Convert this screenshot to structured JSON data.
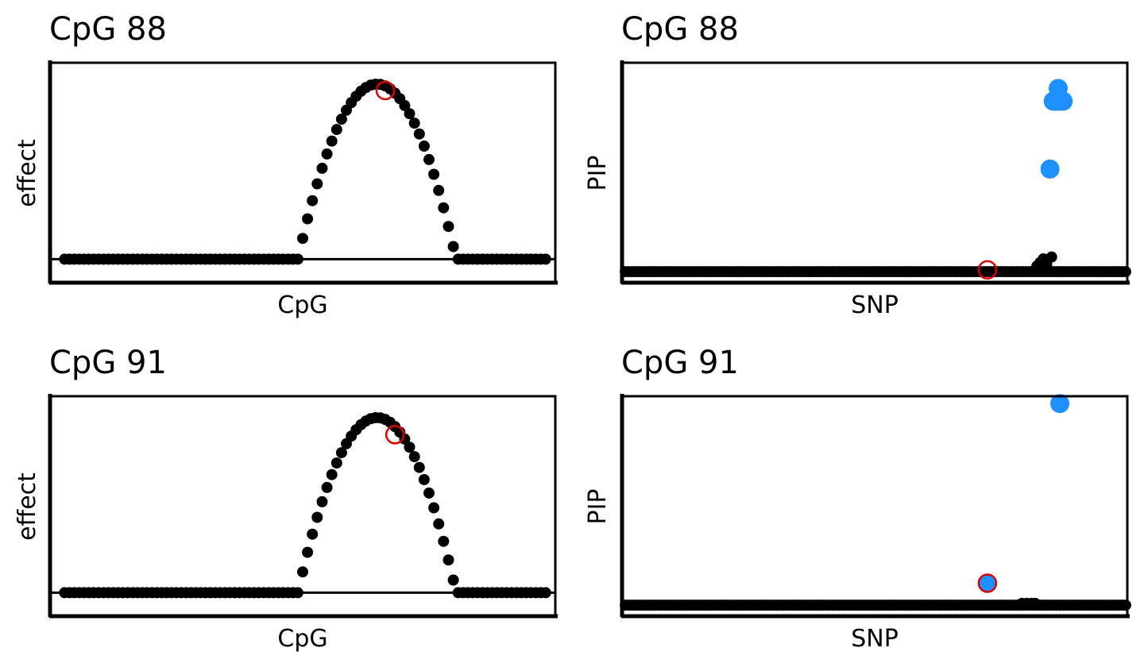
{
  "chart_data": [
    {
      "type": "scatter",
      "title": "CpG 88",
      "xlabel": "CpG",
      "ylabel": "effect",
      "xlim": [
        0,
        104
      ],
      "ylim": [
        -0.11,
        0.92
      ],
      "baseline": 0,
      "grid": false,
      "points": {
        "peak_start": 51,
        "peak_center": 67.3,
        "peak_end": 84,
        "peak_height": 0.82,
        "n": 100
      },
      "highlight": {
        "x": 69,
        "y": 0.79,
        "color": "#dd0000"
      }
    },
    {
      "type": "scatter",
      "title": "CpG 88",
      "xlabel": "SNP",
      "ylabel": "PIP",
      "xlim": [
        0,
        307
      ],
      "ylim": [
        -0.06,
        1.14
      ],
      "grid": false,
      "series_colors": {
        "low": "#000000",
        "high": "#1e90ff"
      },
      "high_points": [
        {
          "x": 265,
          "y": 1.0
        },
        {
          "x": 267,
          "y": 0.93
        },
        {
          "x": 268,
          "y": 0.93
        },
        {
          "x": 263,
          "y": 0.93
        },
        {
          "x": 262,
          "y": 0.93
        },
        {
          "x": 264,
          "y": 0.93
        },
        {
          "x": 266,
          "y": 0.93
        },
        {
          "x": 260,
          "y": 0.56
        }
      ],
      "highlight": {
        "x": 222,
        "y": 0.01,
        "color": "#dd0000"
      }
    },
    {
      "type": "scatter",
      "title": "CpG 91",
      "xlabel": "CpG",
      "ylabel": "effect",
      "xlim": [
        0,
        104
      ],
      "ylim": [
        -0.11,
        0.92
      ],
      "baseline": 0,
      "grid": false,
      "points": {
        "peak_start": 51,
        "peak_center": 67.3,
        "peak_end": 84,
        "peak_height": 0.82,
        "n": 100
      },
      "highlight": {
        "x": 71,
        "y": 0.74,
        "color": "#dd0000"
      }
    },
    {
      "type": "scatter",
      "title": "CpG 91",
      "xlabel": "SNP",
      "ylabel": "PIP",
      "xlim": [
        0,
        307
      ],
      "ylim": [
        -0.06,
        1.14
      ],
      "grid": false,
      "series_colors": {
        "low": "#000000",
        "high": "#1e90ff"
      },
      "high_points": [
        {
          "x": 266,
          "y": 1.1
        }
      ],
      "highlight": {
        "x": 222,
        "y": 0.12,
        "color": "#dd0000",
        "fill": "#1e90ff"
      }
    }
  ]
}
